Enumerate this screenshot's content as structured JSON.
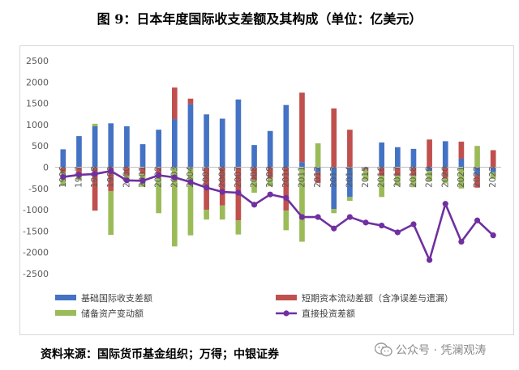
{
  "title": "图 9：日本年度国际收支差额及其构成（单位：亿美元）",
  "source": "资料来源：国际货币基金组织；万得；中银证券",
  "watermark": "公众号 · 凭澜观涛",
  "watermark_icon": "wechat-icon",
  "chart_data": {
    "type": "bar+line",
    "categories": [
      "1996",
      "1997",
      "1998",
      "1999",
      "2000",
      "2001",
      "2002",
      "2003",
      "2004",
      "2005",
      "2006",
      "2007",
      "2008",
      "2009",
      "2010",
      "2011",
      "2012",
      "2013",
      "2014",
      "2015",
      "2016",
      "2017",
      "2018",
      "2019",
      "2020",
      "2021",
      "2022",
      "2023"
    ],
    "ylim": [
      -2500,
      2500
    ],
    "yticks": [
      -2500,
      -2000,
      -1500,
      -1000,
      -500,
      0,
      500,
      1000,
      1500,
      2000,
      2500
    ],
    "stacked": true,
    "grid": false,
    "legend_position": "bottom",
    "series": [
      {
        "name": "基础国际收支差额",
        "type": "bar",
        "color": "#4472c4",
        "values": [
          420,
          730,
          960,
          1030,
          960,
          540,
          880,
          1130,
          1480,
          1240,
          1140,
          1590,
          520,
          850,
          1460,
          120,
          -120,
          -980,
          -700,
          -30,
          580,
          470,
          430,
          -90,
          610,
          200,
          -180,
          -120
        ]
      },
      {
        "name": "短期资本流动差额（含净误差与遗漏）",
        "type": "bar",
        "color": "#c0504d",
        "values": [
          -120,
          -200,
          -1020,
          -560,
          -180,
          -160,
          -200,
          740,
          130,
          -1000,
          -900,
          -1250,
          -300,
          -250,
          -1020,
          1630,
          -250,
          1380,
          880,
          -30,
          -200,
          -200,
          -200,
          650,
          -250,
          400,
          -300,
          400
        ]
      },
      {
        "name": "储备资产变动额",
        "type": "bar",
        "color": "#9bbb59",
        "values": [
          -320,
          -100,
          60,
          -1030,
          -160,
          -300,
          -880,
          -1860,
          -1600,
          -230,
          -330,
          -330,
          -300,
          -200,
          -460,
          -1750,
          560,
          -100,
          -90,
          -250,
          -500,
          -230,
          -270,
          -240,
          -130,
          -500,
          500,
          -150
        ]
      },
      {
        "name": "直接投资差额",
        "type": "line",
        "color": "#7030a0",
        "values": [
          -230,
          -180,
          -160,
          -90,
          -310,
          -320,
          -190,
          -240,
          -350,
          -480,
          -580,
          -600,
          -880,
          -640,
          -720,
          -1170,
          -1170,
          -1440,
          -1170,
          -1300,
          -1370,
          -1530,
          -1340,
          -2180,
          -860,
          -1750,
          -1250,
          -1600
        ]
      }
    ]
  }
}
